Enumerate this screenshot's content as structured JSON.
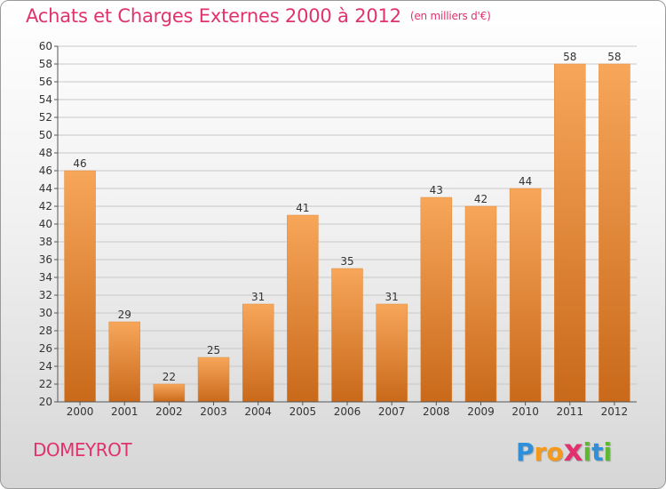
{
  "header": {
    "title": "Achats et Charges Externes 2000 à 2012",
    "unit": "(en milliers d'€)"
  },
  "footer": {
    "commune": "DOMEYROT",
    "logo_letters": [
      "P",
      "r",
      "o",
      "x",
      "i",
      "t",
      "i"
    ],
    "logo_colors": [
      "#2f8fd8",
      "#f39a1c",
      "#f39a1c",
      "#e0326e",
      "#5fb832",
      "#2f8fd8",
      "#5fb832"
    ]
  },
  "colors": {
    "bar_top": "#f7a65a",
    "bar_bottom": "#c9691a",
    "grid": "#c8c8c8",
    "axis": "#555555",
    "text": "#333333"
  },
  "chart_data": {
    "type": "bar",
    "categories": [
      "2000",
      "2001",
      "2002",
      "2003",
      "2004",
      "2005",
      "2006",
      "2007",
      "2008",
      "2009",
      "2010",
      "2011",
      "2012"
    ],
    "values": [
      46,
      29,
      22,
      25,
      31,
      41,
      35,
      31,
      43,
      42,
      44,
      58,
      58
    ],
    "ylim": [
      20,
      60
    ],
    "ytick_step": 2,
    "grid": true,
    "data_labels": true
  }
}
